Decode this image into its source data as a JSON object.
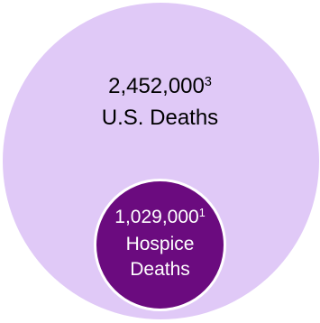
{
  "outer": {
    "value": "2,452,000",
    "note": "3",
    "label": "U.S. Deaths",
    "color": "#e0c9f7"
  },
  "inner": {
    "value": "1,029,000",
    "note": "1",
    "label_line1": "Hospice",
    "label_line2": "Deaths",
    "color": "#6b0b7f"
  }
}
